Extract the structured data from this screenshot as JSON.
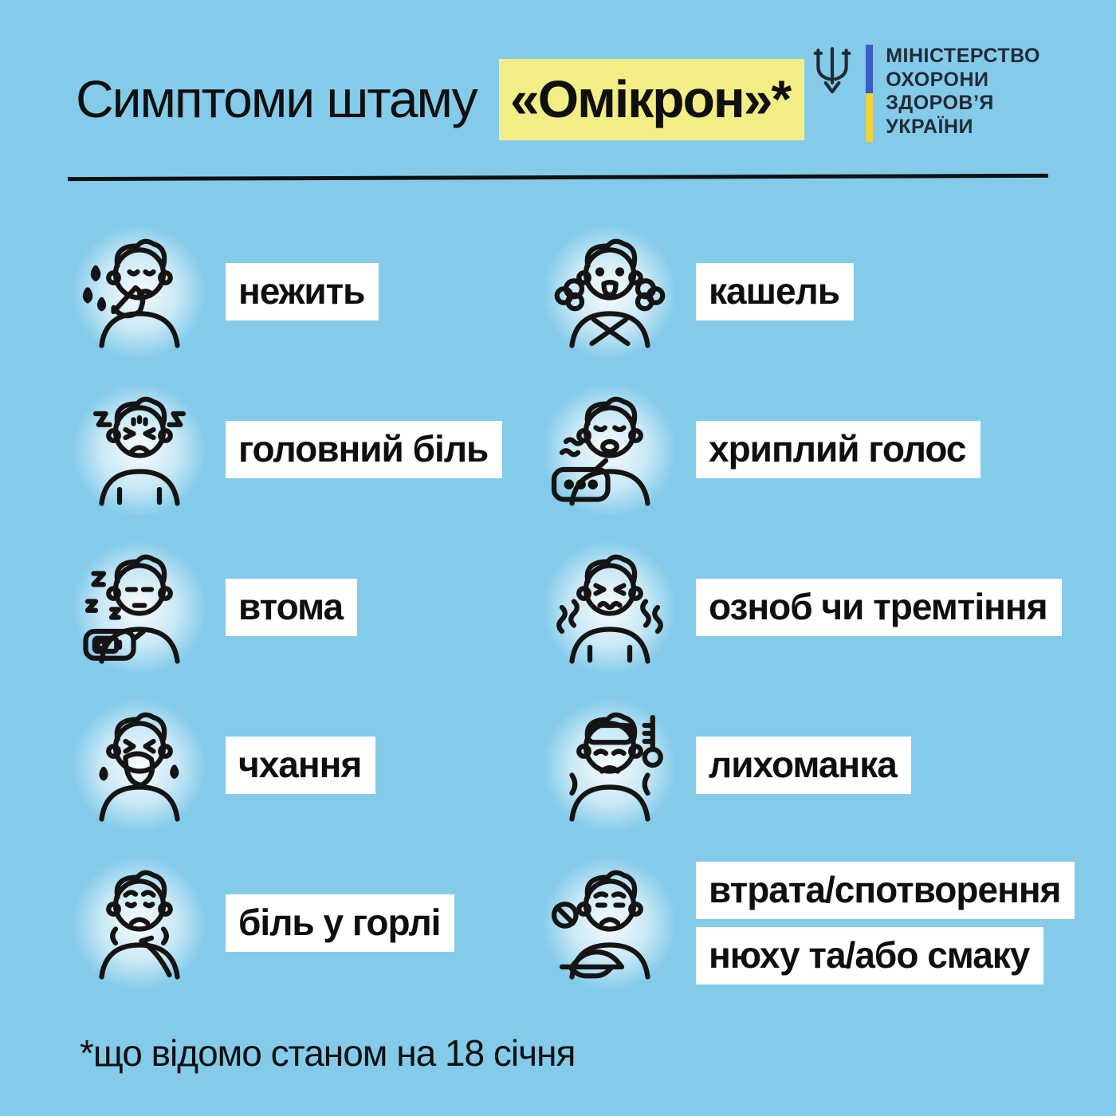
{
  "colors": {
    "background": "#84cbea",
    "highlight": "#f2ee85",
    "label_bg": "#ffffff",
    "text": "#0f0f0f",
    "flag_blue": "#3a5cc5",
    "flag_yellow": "#eed23e"
  },
  "header": {
    "title_regular": "Симптоми штаму",
    "title_highlight": "«Омікрон»*"
  },
  "logo": {
    "lines": [
      "МІНІСТЕРСТВО",
      "ОХОРОНИ",
      "ЗДОРОВ’Я",
      "УКРАЇНИ"
    ]
  },
  "symptoms": {
    "left": [
      {
        "icon": "runny-nose-icon",
        "lines": [
          "нежить"
        ]
      },
      {
        "icon": "headache-icon",
        "lines": [
          "головний біль"
        ]
      },
      {
        "icon": "fatigue-icon",
        "lines": [
          "втома"
        ]
      },
      {
        "icon": "sneezing-icon",
        "lines": [
          "чхання"
        ]
      },
      {
        "icon": "sore-throat-icon",
        "lines": [
          "біль у горлі"
        ]
      }
    ],
    "right": [
      {
        "icon": "cough-icon",
        "lines": [
          "кашель"
        ]
      },
      {
        "icon": "hoarse-voice-icon",
        "lines": [
          "хриплий голос"
        ]
      },
      {
        "icon": "chills-icon",
        "lines": [
          "озноб чи тремтіння"
        ]
      },
      {
        "icon": "fever-icon",
        "lines": [
          "лихоманка"
        ]
      },
      {
        "icon": "smell-taste-loss-icon",
        "lines": [
          "втрата/спотворення",
          "нюху та/або смаку"
        ]
      }
    ]
  },
  "footnote": "*що відомо станом на 18 січня"
}
